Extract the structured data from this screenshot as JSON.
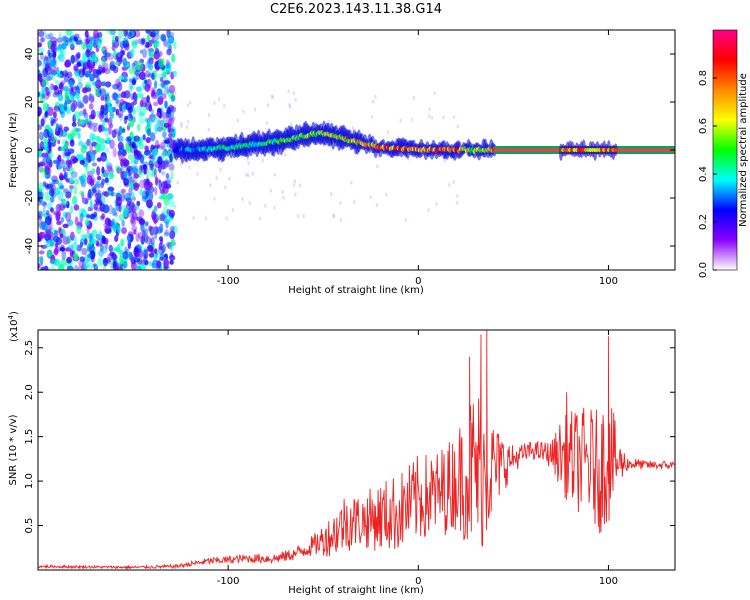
{
  "title": "C2E6.2023.143.11.38.G14",
  "chart_data": [
    {
      "type": "heatmap",
      "xlabel": "Height of straight line (km)",
      "ylabel": "Frequency (Hz)",
      "xlim": [
        -200,
        135
      ],
      "ylim": [
        -50,
        50
      ],
      "x_ticks": [
        -100,
        0,
        100
      ],
      "x_tick_labels": [
        "-100",
        "0",
        "100"
      ],
      "y_ticks": [
        -40,
        -20,
        0,
        20,
        40
      ],
      "y_tick_labels": [
        "-40",
        "-20",
        "0",
        "20",
        "40"
      ],
      "colorbar": {
        "label": "Normalized spectral amplitude",
        "range": [
          0,
          1
        ],
        "ticks": [
          0.0,
          0.2,
          0.4,
          0.6,
          0.8
        ],
        "tick_labels": [
          "0.0",
          "0.2",
          "0.4",
          "0.6",
          "0.8"
        ],
        "colors": [
          "#ffffff",
          "#8800ff",
          "#0000ff",
          "#00ffff",
          "#00ff00",
          "#ffff00",
          "#ff8800",
          "#ff0000",
          "#ff0088"
        ]
      },
      "noise_region": {
        "x_range": [
          -200,
          -128
        ],
        "freq_range": [
          -50,
          50
        ]
      },
      "ridge": {
        "x": [
          -128,
          -120,
          -110,
          -100,
          -90,
          -80,
          -70,
          -60,
          -52,
          -45,
          -40,
          -30,
          -20,
          -10,
          0,
          10,
          20,
          30,
          40,
          60,
          75,
          90,
          100,
          120,
          135
        ],
        "freq": [
          0,
          0,
          0.5,
          1,
          2,
          3,
          4,
          6,
          7,
          6,
          5,
          3,
          1,
          1,
          0,
          0,
          0,
          0,
          0,
          0,
          0,
          0,
          0,
          0,
          0
        ],
        "amplitude": [
          0.3,
          0.35,
          0.4,
          0.45,
          0.45,
          0.5,
          0.55,
          0.6,
          0.6,
          0.65,
          0.7,
          0.75,
          0.85,
          0.85,
          0.8,
          0.85,
          0.85,
          0.6,
          0.9,
          0.9,
          0.7,
          0.75,
          0.6,
          0.9,
          0.9
        ],
        "gap": [
          42,
          75
        ]
      }
    },
    {
      "type": "line",
      "xlabel": "Height of straight line (km)",
      "ylabel": "SNR (10 * v/v)",
      "y_multiplier": "(x10",
      "y_multiplier_exp": "4",
      "y_multiplier_close": ")",
      "xlim": [
        -200,
        135
      ],
      "ylim": [
        0,
        27000
      ],
      "x_ticks": [
        -100,
        0,
        100
      ],
      "x_tick_labels": [
        "-100",
        "0",
        "100"
      ],
      "y_ticks": [
        5000,
        10000,
        15000,
        20000,
        25000
      ],
      "y_tick_labels": [
        "0.5",
        "1.0",
        "1.5",
        "2.0",
        "2.5"
      ],
      "color": "#ee2222",
      "series": [
        {
          "values_envelope": {
            "x": [
              -200,
              -150,
              -128,
              -110,
              -90,
              -75,
              -65,
              -55,
              -45,
              -38,
              -30,
              -20,
              -10,
              0,
              10,
              20,
              25,
              30,
              35,
              40,
              50,
              60,
              70,
              75,
              80,
              90,
              95,
              100,
              105,
              110,
              120,
              135
            ],
            "mid": [
              400,
              300,
              400,
              1000,
              1300,
              1300,
              1800,
              2800,
              4000,
              5500,
              5500,
              6000,
              6500,
              8000,
              8500,
              10000,
              11000,
              11000,
              11500,
              11500,
              12500,
              13500,
              13000,
              13000,
              12500,
              12000,
              11000,
              13000,
              12000,
              12000,
              11800,
              11800
            ],
            "amp": [
              150,
              150,
              200,
              400,
              500,
              600,
              700,
              1200,
              2500,
              3500,
              3000,
              4000,
              4500,
              5000,
              5000,
              5500,
              8000,
              10000,
              9000,
              5000,
              1500,
              1000,
              1500,
              4000,
              5500,
              6500,
              7000,
              8000,
              3000,
              800,
              500,
              500
            ],
            "peaks_x": [
              27,
              33,
              36,
              100,
              78
            ],
            "peaks_y": [
              24000,
              26500,
              27000,
              26300,
              20000
            ]
          }
        }
      ]
    }
  ]
}
